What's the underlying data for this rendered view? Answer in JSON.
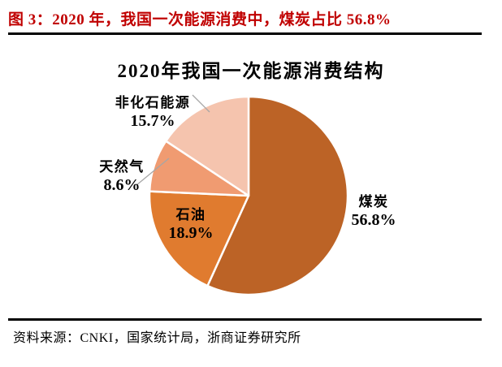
{
  "header": {
    "title": "图 3：2020 年，我国一次能源消费中，煤炭占比 56.8%"
  },
  "source": {
    "label": "资料来源：CNKI，国家统计局，浙商证券研究所"
  },
  "chart_data": {
    "type": "pie",
    "title": "2020年我国一次能源消费结构",
    "unit": "%",
    "start_angle_deg": 0,
    "direction": "clockwise",
    "legend_position": "none",
    "slices": [
      {
        "key": "coal",
        "label": "煤炭",
        "value": 56.8,
        "pct_label": "56.8%",
        "color": "#BC6326"
      },
      {
        "key": "oil",
        "label": "石油",
        "value": 18.9,
        "pct_label": "18.9%",
        "color": "#E07B2F"
      },
      {
        "key": "natural-gas",
        "label": "天然气",
        "value": 8.6,
        "pct_label": "8.6%",
        "color": "#F09B71"
      },
      {
        "key": "non-fossil-energy",
        "label": "非化石能源",
        "value": 15.7,
        "pct_label": "15.7%",
        "color": "#F5C4AE"
      }
    ],
    "colors": {
      "title_red": "#C00000",
      "text": "#000000",
      "slice_border": "#FFFFFF",
      "leader_line": "#A6A6A6"
    }
  }
}
